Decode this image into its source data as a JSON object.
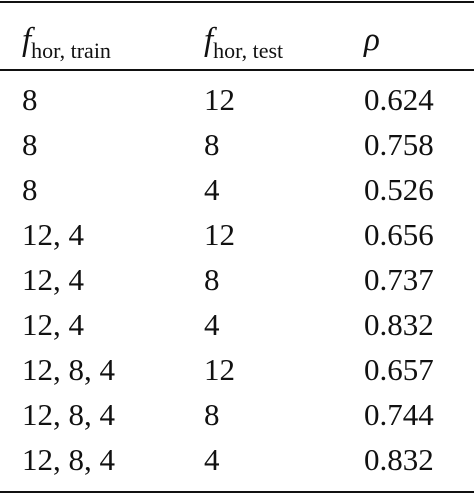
{
  "table": {
    "header": [
      {
        "symbol": "f",
        "subscript": "hor, train"
      },
      {
        "symbol": "f",
        "subscript": "hor, test"
      },
      {
        "symbol": "ρ"
      }
    ],
    "rows": [
      [
        "8",
        "12",
        "0.624"
      ],
      [
        "8",
        "8",
        "0.758"
      ],
      [
        "8",
        "4",
        "0.526"
      ],
      [
        "12, 4",
        "12",
        "0.656"
      ],
      [
        "12, 4",
        "8",
        "0.737"
      ],
      [
        "12, 4",
        "4",
        "0.832"
      ],
      [
        "12, 8, 4",
        "12",
        "0.657"
      ],
      [
        "12, 8, 4",
        "8",
        "0.744"
      ],
      [
        "12, 8, 4",
        "4",
        "0.832"
      ]
    ]
  }
}
